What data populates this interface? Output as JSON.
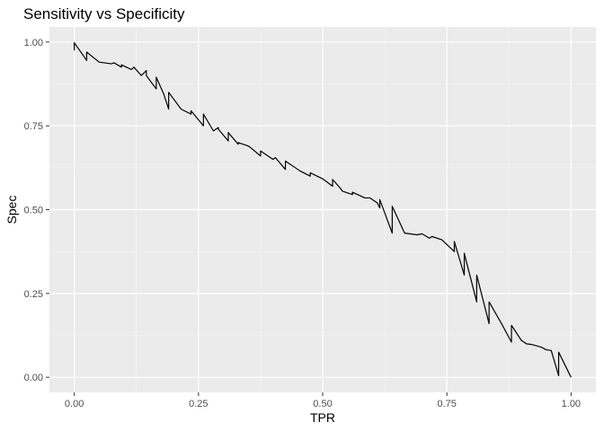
{
  "chart_data": {
    "type": "line",
    "title": "Sensitivity vs Specificity",
    "xlabel": "TPR",
    "ylabel": "Spec",
    "xlim": [
      -0.05,
      1.05
    ],
    "ylim": [
      -0.045,
      1.045
    ],
    "x_ticks": [
      0,
      0.25,
      0.5,
      0.75,
      1
    ],
    "x_tick_labels": [
      "0.00",
      "0.25",
      "0.50",
      "0.75",
      "1.00"
    ],
    "y_ticks": [
      0,
      0.25,
      0.5,
      0.75,
      1
    ],
    "y_tick_labels": [
      "0.00",
      "0.25",
      "0.50",
      "0.75",
      "1.00"
    ],
    "grid": true,
    "series": [
      {
        "color": "#000000",
        "x": [
          0.0,
          0.0,
          0.025,
          0.025,
          0.05,
          0.075,
          0.08,
          0.095,
          0.095,
          0.115,
          0.12,
          0.135,
          0.145,
          0.145,
          0.165,
          0.165,
          0.18,
          0.19,
          0.19,
          0.215,
          0.235,
          0.235,
          0.26,
          0.26,
          0.28,
          0.29,
          0.29,
          0.31,
          0.31,
          0.33,
          0.33,
          0.35,
          0.355,
          0.375,
          0.375,
          0.4,
          0.405,
          0.425,
          0.425,
          0.45,
          0.455,
          0.475,
          0.475,
          0.5,
          0.52,
          0.52,
          0.535,
          0.54,
          0.56,
          0.56,
          0.585,
          0.595,
          0.61,
          0.615,
          0.615,
          0.64,
          0.64,
          0.665,
          0.69,
          0.7,
          0.715,
          0.72,
          0.74,
          0.765,
          0.765,
          0.785,
          0.785,
          0.81,
          0.81,
          0.835,
          0.835,
          0.86,
          0.88,
          0.88,
          0.9,
          0.91,
          0.92,
          0.94,
          0.95,
          0.96,
          0.975,
          0.975,
          1.0
        ],
        "y": [
          0.975,
          0.998,
          0.945,
          0.97,
          0.94,
          0.935,
          0.938,
          0.925,
          0.932,
          0.918,
          0.925,
          0.9,
          0.915,
          0.9,
          0.86,
          0.895,
          0.845,
          0.8,
          0.85,
          0.8,
          0.785,
          0.795,
          0.75,
          0.785,
          0.735,
          0.745,
          0.74,
          0.705,
          0.73,
          0.695,
          0.7,
          0.69,
          0.685,
          0.66,
          0.675,
          0.65,
          0.655,
          0.62,
          0.645,
          0.62,
          0.615,
          0.6,
          0.61,
          0.592,
          0.57,
          0.59,
          0.565,
          0.555,
          0.545,
          0.552,
          0.535,
          0.535,
          0.52,
          0.505,
          0.53,
          0.43,
          0.51,
          0.43,
          0.425,
          0.428,
          0.415,
          0.42,
          0.41,
          0.375,
          0.405,
          0.305,
          0.37,
          0.225,
          0.305,
          0.16,
          0.225,
          0.16,
          0.105,
          0.155,
          0.11,
          0.1,
          0.098,
          0.09,
          0.082,
          0.08,
          0.005,
          0.075,
          0.0
        ]
      }
    ]
  }
}
